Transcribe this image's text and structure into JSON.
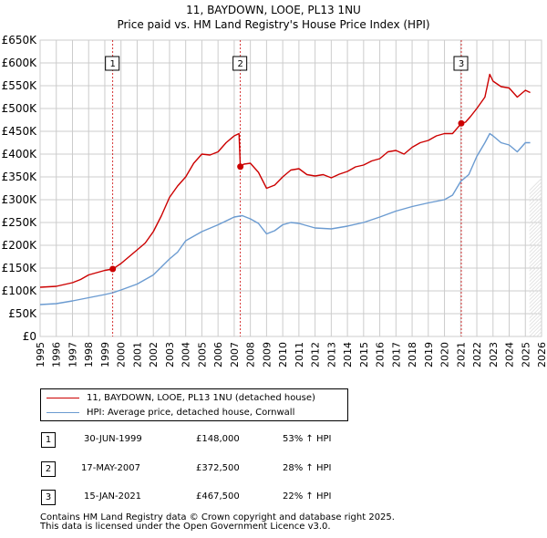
{
  "title_line1": "11, BAYDOWN, LOOE, PL13 1NU",
  "title_line2": "Price paid vs. HM Land Registry's House Price Index (HPI)",
  "chart_data": {
    "type": "line",
    "x_range": [
      1995,
      2026
    ],
    "ylim": [
      0,
      650000
    ],
    "y_ticks": [
      0,
      50000,
      100000,
      150000,
      200000,
      250000,
      300000,
      350000,
      400000,
      450000,
      500000,
      550000,
      600000,
      650000
    ],
    "y_tick_labels": [
      "£0",
      "£50K",
      "£100K",
      "£150K",
      "£200K",
      "£250K",
      "£300K",
      "£350K",
      "£400K",
      "£450K",
      "£500K",
      "£550K",
      "£600K",
      "£650K"
    ],
    "x_ticks": [
      1995,
      1996,
      1997,
      1998,
      1999,
      2000,
      2001,
      2002,
      2003,
      2004,
      2005,
      2006,
      2007,
      2008,
      2009,
      2010,
      2011,
      2012,
      2013,
      2014,
      2015,
      2016,
      2017,
      2018,
      2019,
      2020,
      2021,
      2022,
      2023,
      2024,
      2025,
      2026
    ],
    "x_tick_labels": [
      "1995",
      "1996",
      "1997",
      "1998",
      "1999",
      "2000",
      "2001",
      "2002",
      "2003",
      "2004",
      "2005",
      "2006",
      "2007",
      "2008",
      "2009",
      "2010",
      "2011",
      "2012",
      "2013",
      "2014",
      "2015",
      "2016",
      "2017",
      "2018",
      "2019",
      "2020",
      "2021",
      "2022",
      "2023",
      "2024",
      "2025",
      "2026"
    ],
    "grid": true,
    "series": [
      {
        "name": "11, BAYDOWN, LOOE, PL13 1NU (detached house)",
        "color": "#cc0000",
        "points": [
          [
            1995.0,
            108000
          ],
          [
            1996.0,
            110000
          ],
          [
            1997.0,
            118000
          ],
          [
            1997.5,
            125000
          ],
          [
            1998.0,
            135000
          ],
          [
            1998.5,
            140000
          ],
          [
            1999.0,
            145000
          ],
          [
            1999.5,
            148000
          ],
          [
            2000.0,
            160000
          ],
          [
            2000.5,
            175000
          ],
          [
            2001.0,
            190000
          ],
          [
            2001.5,
            205000
          ],
          [
            2002.0,
            230000
          ],
          [
            2002.5,
            265000
          ],
          [
            2003.0,
            305000
          ],
          [
            2003.5,
            330000
          ],
          [
            2004.0,
            350000
          ],
          [
            2004.5,
            380000
          ],
          [
            2005.0,
            400000
          ],
          [
            2005.5,
            398000
          ],
          [
            2006.0,
            405000
          ],
          [
            2006.5,
            425000
          ],
          [
            2007.0,
            440000
          ],
          [
            2007.3,
            445000
          ],
          [
            2007.38,
            372500
          ],
          [
            2007.6,
            378000
          ],
          [
            2008.0,
            380000
          ],
          [
            2008.5,
            360000
          ],
          [
            2009.0,
            325000
          ],
          [
            2009.5,
            332000
          ],
          [
            2010.0,
            350000
          ],
          [
            2010.5,
            365000
          ],
          [
            2011.0,
            368000
          ],
          [
            2011.5,
            355000
          ],
          [
            2012.0,
            352000
          ],
          [
            2012.5,
            355000
          ],
          [
            2013.0,
            348000
          ],
          [
            2013.5,
            356000
          ],
          [
            2014.0,
            362000
          ],
          [
            2014.5,
            372000
          ],
          [
            2015.0,
            376000
          ],
          [
            2015.5,
            385000
          ],
          [
            2016.0,
            390000
          ],
          [
            2016.5,
            405000
          ],
          [
            2017.0,
            408000
          ],
          [
            2017.5,
            400000
          ],
          [
            2018.0,
            415000
          ],
          [
            2018.5,
            425000
          ],
          [
            2019.0,
            430000
          ],
          [
            2019.5,
            440000
          ],
          [
            2020.0,
            445000
          ],
          [
            2020.5,
            445000
          ],
          [
            2021.04,
            467500
          ],
          [
            2021.3,
            470000
          ],
          [
            2021.6,
            482000
          ],
          [
            2022.0,
            500000
          ],
          [
            2022.5,
            525000
          ],
          [
            2022.8,
            575000
          ],
          [
            2023.0,
            560000
          ],
          [
            2023.5,
            548000
          ],
          [
            2024.0,
            545000
          ],
          [
            2024.5,
            525000
          ],
          [
            2025.0,
            540000
          ],
          [
            2025.3,
            535000
          ]
        ]
      },
      {
        "name": "HPI: Average price, detached house, Cornwall",
        "color": "#6b9bd1",
        "points": [
          [
            1995.0,
            70000
          ],
          [
            1996.0,
            72000
          ],
          [
            1997.0,
            78000
          ],
          [
            1998.0,
            85000
          ],
          [
            1999.0,
            92000
          ],
          [
            1999.5,
            96000
          ],
          [
            2000.0,
            102000
          ],
          [
            2001.0,
            115000
          ],
          [
            2002.0,
            135000
          ],
          [
            2003.0,
            170000
          ],
          [
            2003.5,
            185000
          ],
          [
            2004.0,
            210000
          ],
          [
            2005.0,
            230000
          ],
          [
            2006.0,
            245000
          ],
          [
            2007.0,
            262000
          ],
          [
            2007.5,
            265000
          ],
          [
            2008.0,
            258000
          ],
          [
            2008.5,
            248000
          ],
          [
            2009.0,
            225000
          ],
          [
            2009.5,
            232000
          ],
          [
            2010.0,
            245000
          ],
          [
            2010.5,
            250000
          ],
          [
            2011.0,
            248000
          ],
          [
            2012.0,
            238000
          ],
          [
            2013.0,
            236000
          ],
          [
            2014.0,
            242000
          ],
          [
            2015.0,
            250000
          ],
          [
            2016.0,
            262000
          ],
          [
            2017.0,
            275000
          ],
          [
            2018.0,
            285000
          ],
          [
            2019.0,
            293000
          ],
          [
            2020.0,
            300000
          ],
          [
            2020.5,
            310000
          ],
          [
            2021.0,
            340000
          ],
          [
            2021.5,
            355000
          ],
          [
            2022.0,
            395000
          ],
          [
            2022.5,
            425000
          ],
          [
            2022.8,
            445000
          ],
          [
            2023.0,
            440000
          ],
          [
            2023.5,
            425000
          ],
          [
            2024.0,
            420000
          ],
          [
            2024.5,
            405000
          ],
          [
            2025.0,
            425000
          ],
          [
            2025.3,
            425000
          ]
        ]
      }
    ],
    "sales": [
      {
        "id": "1",
        "x": 1999.49,
        "price": 148000
      },
      {
        "id": "2",
        "x": 2007.38,
        "price": 372500
      },
      {
        "id": "3",
        "x": 2021.04,
        "price": 467500
      }
    ]
  },
  "legend": {
    "property_label": "11, BAYDOWN, LOOE, PL13 1NU (detached house)",
    "hpi_label": "HPI: Average price, detached house, Cornwall"
  },
  "transactions": [
    {
      "id": "1",
      "date": "30-JUN-1999",
      "price": "£148,000",
      "hpi": "53% ↑ HPI"
    },
    {
      "id": "2",
      "date": "17-MAY-2007",
      "price": "£372,500",
      "hpi": "28% ↑ HPI"
    },
    {
      "id": "3",
      "date": "15-JAN-2021",
      "price": "£467,500",
      "hpi": "22% ↑ HPI"
    }
  ],
  "footer_line1": "Contains HM Land Registry data © Crown copyright and database right 2025.",
  "footer_line2": "This data is licensed under the Open Government Licence v3.0."
}
